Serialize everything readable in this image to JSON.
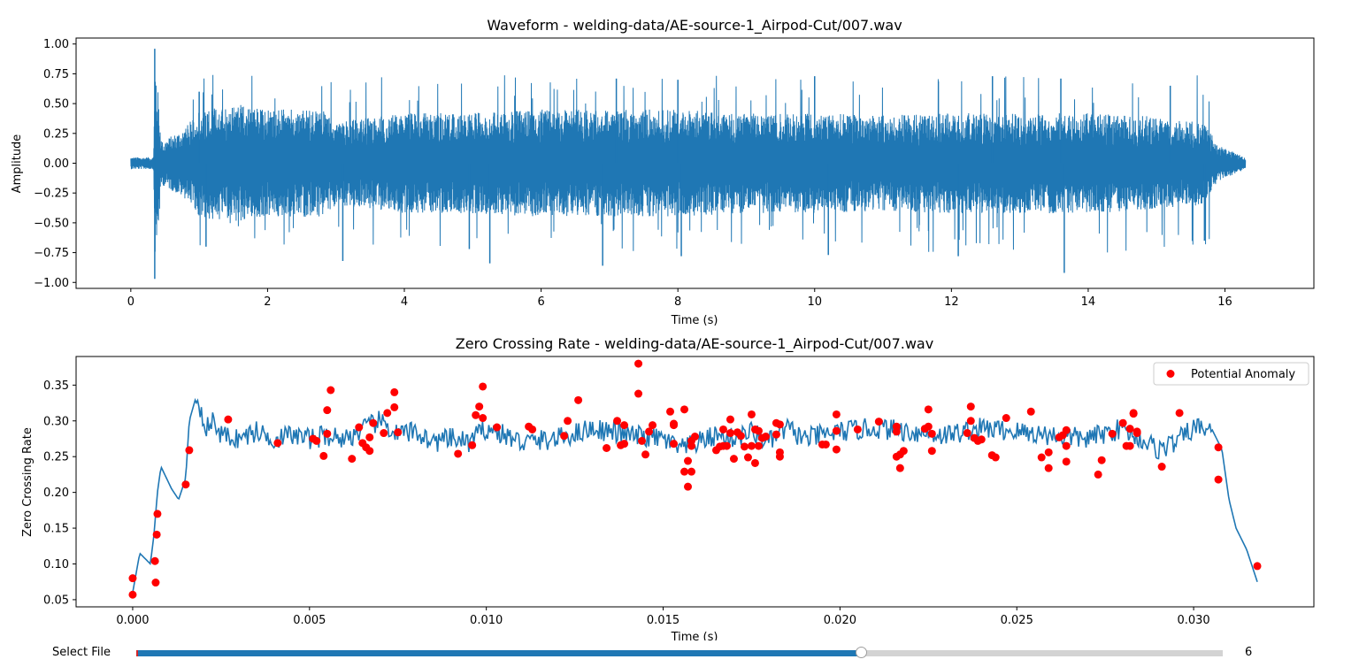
{
  "chart_data": [
    {
      "type": "line",
      "title": "Waveform - welding-data/AE-source-1_Airpod-Cut/007.wav",
      "xlabel": "Time (s)",
      "ylabel": "Amplitude",
      "xlim": [
        -0.8,
        17.3
      ],
      "ylim": [
        -1.05,
        1.05
      ],
      "xticks": [
        0,
        2,
        4,
        6,
        8,
        10,
        12,
        14,
        16
      ],
      "xtick_labels": [
        "0",
        "2",
        "4",
        "6",
        "8",
        "10",
        "12",
        "14",
        "16"
      ],
      "yticks": [
        1.0,
        0.75,
        0.5,
        0.25,
        0.0,
        -0.25,
        -0.5,
        -0.75,
        -1.0
      ],
      "ytick_labels": [
        "1.00",
        "0.75",
        "0.50",
        "0.25",
        "0.00",
        "−0.25",
        "−0.50",
        "−0.75",
        "−1.00"
      ],
      "duration": 16.3,
      "color": "#1f77b4",
      "envelope": {
        "t": [
          0,
          0.33,
          0.36,
          0.45,
          0.8,
          1.0,
          1.5,
          2.0,
          2.8,
          3.0,
          4.0,
          5.0,
          6.0,
          7.0,
          8.0,
          9.0,
          10.0,
          11.0,
          12.0,
          13.0,
          14.0,
          14.8,
          15.0,
          15.7,
          15.9,
          16.3
        ],
        "amp": [
          0.05,
          0.05,
          0.9,
          0.18,
          0.3,
          0.45,
          0.5,
          0.45,
          0.45,
          0.35,
          0.42,
          0.42,
          0.45,
          0.45,
          0.45,
          0.42,
          0.42,
          0.4,
          0.42,
          0.42,
          0.42,
          0.4,
          0.38,
          0.35,
          0.15,
          0.05
        ]
      },
      "spikes": [
        {
          "t": 0.35,
          "v": 0.96
        },
        {
          "t": 0.35,
          "v": -0.97
        },
        {
          "t": 1.0,
          "v": 0.6
        },
        {
          "t": 1.1,
          "v": -0.7
        },
        {
          "t": 3.1,
          "v": -0.82
        },
        {
          "t": 4.95,
          "v": -0.72
        },
        {
          "t": 5.25,
          "v": -0.84
        },
        {
          "t": 7.1,
          "v": 0.71
        },
        {
          "t": 6.9,
          "v": -0.86
        },
        {
          "t": 8.0,
          "v": 0.7
        },
        {
          "t": 8.05,
          "v": -0.78
        },
        {
          "t": 10.0,
          "v": 0.73
        },
        {
          "t": 10.2,
          "v": -0.77
        },
        {
          "t": 12.6,
          "v": 0.73
        },
        {
          "t": 12.1,
          "v": -0.78
        },
        {
          "t": 13.6,
          "v": 0.71
        },
        {
          "t": 13.65,
          "v": -0.92
        },
        {
          "t": 15.2,
          "v": 0.65
        },
        {
          "t": 15.7,
          "v": -0.65
        }
      ]
    },
    {
      "type": "line",
      "title": "Zero Crossing Rate - welding-data/AE-source-1_Airpod-Cut/007.wav",
      "xlabel": "Time (s)",
      "ylabel": "Zero Crossing Rate",
      "xlim": [
        -0.0016,
        0.0334
      ],
      "ylim": [
        0.04,
        0.39
      ],
      "xticks": [
        0.0,
        0.005,
        0.01,
        0.015,
        0.02,
        0.025,
        0.03
      ],
      "xtick_labels": [
        "0.000",
        "0.005",
        "0.010",
        "0.015",
        "0.020",
        "0.025",
        "0.030"
      ],
      "yticks": [
        0.35,
        0.3,
        0.25,
        0.2,
        0.15,
        0.1,
        0.05
      ],
      "ytick_labels": [
        "0.35",
        "0.30",
        "0.25",
        "0.20",
        "0.15",
        "0.10",
        "0.05"
      ],
      "line_color": "#1f77b4",
      "marker_color": "#ff0000",
      "legend": {
        "label": "Potential Anomaly",
        "loc": "upper right"
      },
      "baseline": {
        "x": [
          0,
          0.0002,
          0.0005,
          0.0006,
          0.0007,
          0.0008,
          0.0011,
          0.0013,
          0.0015,
          0.0016,
          0.0018,
          0.0021,
          0.0023,
          0.0025,
          0.003,
          0.0035,
          0.004,
          0.0045,
          0.005,
          0.0055,
          0.006,
          0.007,
          0.0075,
          0.008,
          0.0085,
          0.009,
          0.0095,
          0.01,
          0.0105,
          0.011,
          0.012,
          0.013,
          0.014,
          0.015,
          0.0155,
          0.016,
          0.0165,
          0.017,
          0.0175,
          0.018,
          0.0185,
          0.019,
          0.02,
          0.021,
          0.022,
          0.023,
          0.024,
          0.025,
          0.026,
          0.027,
          0.028,
          0.029,
          0.0295,
          0.03,
          0.0305,
          0.0308,
          0.031,
          0.0312,
          0.0315,
          0.0318
        ],
        "y": [
          0.06,
          0.115,
          0.1,
          0.14,
          0.2,
          0.236,
          0.205,
          0.19,
          0.22,
          0.3,
          0.335,
          0.29,
          0.3,
          0.28,
          0.275,
          0.285,
          0.275,
          0.28,
          0.275,
          0.28,
          0.275,
          0.3,
          0.28,
          0.285,
          0.27,
          0.275,
          0.27,
          0.29,
          0.28,
          0.27,
          0.275,
          0.29,
          0.28,
          0.275,
          0.26,
          0.27,
          0.28,
          0.275,
          0.285,
          0.27,
          0.29,
          0.275,
          0.285,
          0.29,
          0.285,
          0.28,
          0.29,
          0.285,
          0.28,
          0.275,
          0.29,
          0.26,
          0.27,
          0.29,
          0.29,
          0.26,
          0.19,
          0.15,
          0.12,
          0.075
        ]
      },
      "anomalies": {
        "x": [
          0.0,
          0.0,
          0.00063,
          0.00065,
          0.00068,
          0.0007,
          0.0015,
          0.0016,
          0.0027,
          0.0041,
          0.0051,
          0.0052,
          0.0054,
          0.0055,
          0.0055,
          0.0056,
          0.0062,
          0.0064,
          0.0065,
          0.0066,
          0.0067,
          0.0067,
          0.0068,
          0.0071,
          0.0072,
          0.0074,
          0.0074,
          0.0075,
          0.0092,
          0.0096,
          0.0097,
          0.0098,
          0.0099,
          0.0099,
          0.0103,
          0.0112,
          0.0113,
          0.0122,
          0.0123,
          0.0126,
          0.0134,
          0.0137,
          0.0138,
          0.0139,
          0.0139,
          0.0143,
          0.0143,
          0.0144,
          0.0145,
          0.0146,
          0.0147,
          0.0152,
          0.0153,
          0.0153,
          0.0153,
          0.0156,
          0.0156,
          0.0157,
          0.0157,
          0.0158,
          0.0158,
          0.0158,
          0.0159,
          0.0165,
          0.0166,
          0.0167,
          0.0167,
          0.0168,
          0.0169,
          0.0169,
          0.017,
          0.0171,
          0.0172,
          0.0173,
          0.0174,
          0.0175,
          0.0175,
          0.0176,
          0.0176,
          0.0177,
          0.0177,
          0.0178,
          0.0179,
          0.0182,
          0.0182,
          0.0183,
          0.0183,
          0.0183,
          0.0195,
          0.0196,
          0.0199,
          0.0199,
          0.0199,
          0.0205,
          0.0211,
          0.0216,
          0.0216,
          0.0216,
          0.0217,
          0.0217,
          0.0218,
          0.0224,
          0.0225,
          0.0225,
          0.0226,
          0.0226,
          0.0236,
          0.0237,
          0.0237,
          0.0238,
          0.0239,
          0.024,
          0.0243,
          0.0244,
          0.0247,
          0.0254,
          0.0257,
          0.0259,
          0.0259,
          0.0262,
          0.0263,
          0.0264,
          0.0264,
          0.0264,
          0.0273,
          0.0274,
          0.0277,
          0.028,
          0.0281,
          0.0282,
          0.0282,
          0.0283,
          0.0283,
          0.0284,
          0.0284,
          0.0291,
          0.0296,
          0.0307,
          0.0307,
          0.0318
        ],
        "y": [
          0.08,
          0.057,
          0.104,
          0.074,
          0.141,
          0.17,
          0.211,
          0.259,
          0.302,
          0.269,
          0.275,
          0.272,
          0.251,
          0.282,
          0.315,
          0.343,
          0.247,
          0.291,
          0.269,
          0.263,
          0.258,
          0.277,
          0.297,
          0.283,
          0.311,
          0.34,
          0.319,
          0.284,
          0.254,
          0.266,
          0.308,
          0.32,
          0.348,
          0.304,
          0.291,
          0.292,
          0.288,
          0.279,
          0.3,
          0.329,
          0.262,
          0.3,
          0.266,
          0.268,
          0.294,
          0.338,
          0.38,
          0.272,
          0.253,
          0.285,
          0.294,
          0.313,
          0.296,
          0.268,
          0.294,
          0.316,
          0.229,
          0.244,
          0.208,
          0.272,
          0.229,
          0.265,
          0.278,
          0.259,
          0.264,
          0.265,
          0.288,
          0.265,
          0.283,
          0.302,
          0.247,
          0.284,
          0.279,
          0.264,
          0.249,
          0.309,
          0.265,
          0.288,
          0.241,
          0.265,
          0.286,
          0.276,
          0.278,
          0.297,
          0.281,
          0.256,
          0.295,
          0.25,
          0.267,
          0.267,
          0.26,
          0.286,
          0.309,
          0.288,
          0.299,
          0.285,
          0.25,
          0.292,
          0.253,
          0.234,
          0.258,
          0.289,
          0.316,
          0.292,
          0.282,
          0.258,
          0.283,
          0.32,
          0.3,
          0.276,
          0.272,
          0.274,
          0.252,
          0.249,
          0.304,
          0.313,
          0.249,
          0.256,
          0.234,
          0.277,
          0.28,
          0.287,
          0.265,
          0.243,
          0.225,
          0.245,
          0.282,
          0.297,
          0.265,
          0.289,
          0.265,
          0.31,
          0.311,
          0.285,
          0.283,
          0.236,
          0.311,
          0.263,
          0.218,
          0.097
        ]
      }
    }
  ],
  "slider": {
    "label": "Select File",
    "value": "6",
    "fraction": 0.667,
    "fill_color": "#1f77b4",
    "track_color": "#d3d3d3"
  }
}
